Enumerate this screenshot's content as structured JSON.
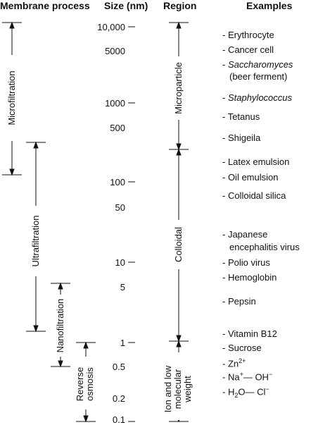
{
  "headers": {
    "process": "Membrane process",
    "size": "Size (nm)",
    "region": "Region",
    "examples": "Examples"
  },
  "size_ticks": [
    "10,000",
    "5000",
    "1000",
    "500",
    "100",
    "50",
    "10",
    "5",
    "1",
    "0.5",
    "0.2",
    "0.1"
  ],
  "processes": {
    "microfiltration": "Microfiltration",
    "ultrafiltration": "Ultrafiltration",
    "nanofiltration": "Nanofiltration",
    "reverse_osmosis_1": "Reverse",
    "reverse_osmosis_2": "osmosis"
  },
  "regions": {
    "microparticle": "Microparticle",
    "colloidal": "Colloidal",
    "ionic_1": "Ion and low",
    "ionic_2": "molecular",
    "ionic_3": "weight"
  },
  "examples": {
    "erythrocyte": "- Erythrocyte",
    "cancer_cell": "- Cancer cell",
    "saccharomyces_dash": "- ",
    "saccharomyces": "Saccharomyces",
    "beer_ferment": "(beer ferment)",
    "staphylococcus_dash": "- ",
    "staphylococcus": "Staphylococcus",
    "tetanus": "- Tetanus",
    "shigeila": "- Shigeila",
    "latex": "- Latex emulsion",
    "oil": "- Oil emulsion",
    "silica": "- Colloidal silica",
    "japanese_1": "- Japanese",
    "japanese_2": "encephalitis virus",
    "polio": "- Polio virus",
    "hemoglobin": "- Hemoglobin",
    "pepsin": "- Pepsin",
    "vitamin": "- Vitamin B12",
    "sucrose": "- Sucrose",
    "zn": "- Zn",
    "zn_sup": "2+",
    "na": "- Na",
    "na_sup": "+",
    "oh": "— OH",
    "oh_sup": "−",
    "h2o_pre": "- H",
    "h2o_sub": "2",
    "h2o_post": "O— Cl",
    "cl_sup": "−"
  }
}
